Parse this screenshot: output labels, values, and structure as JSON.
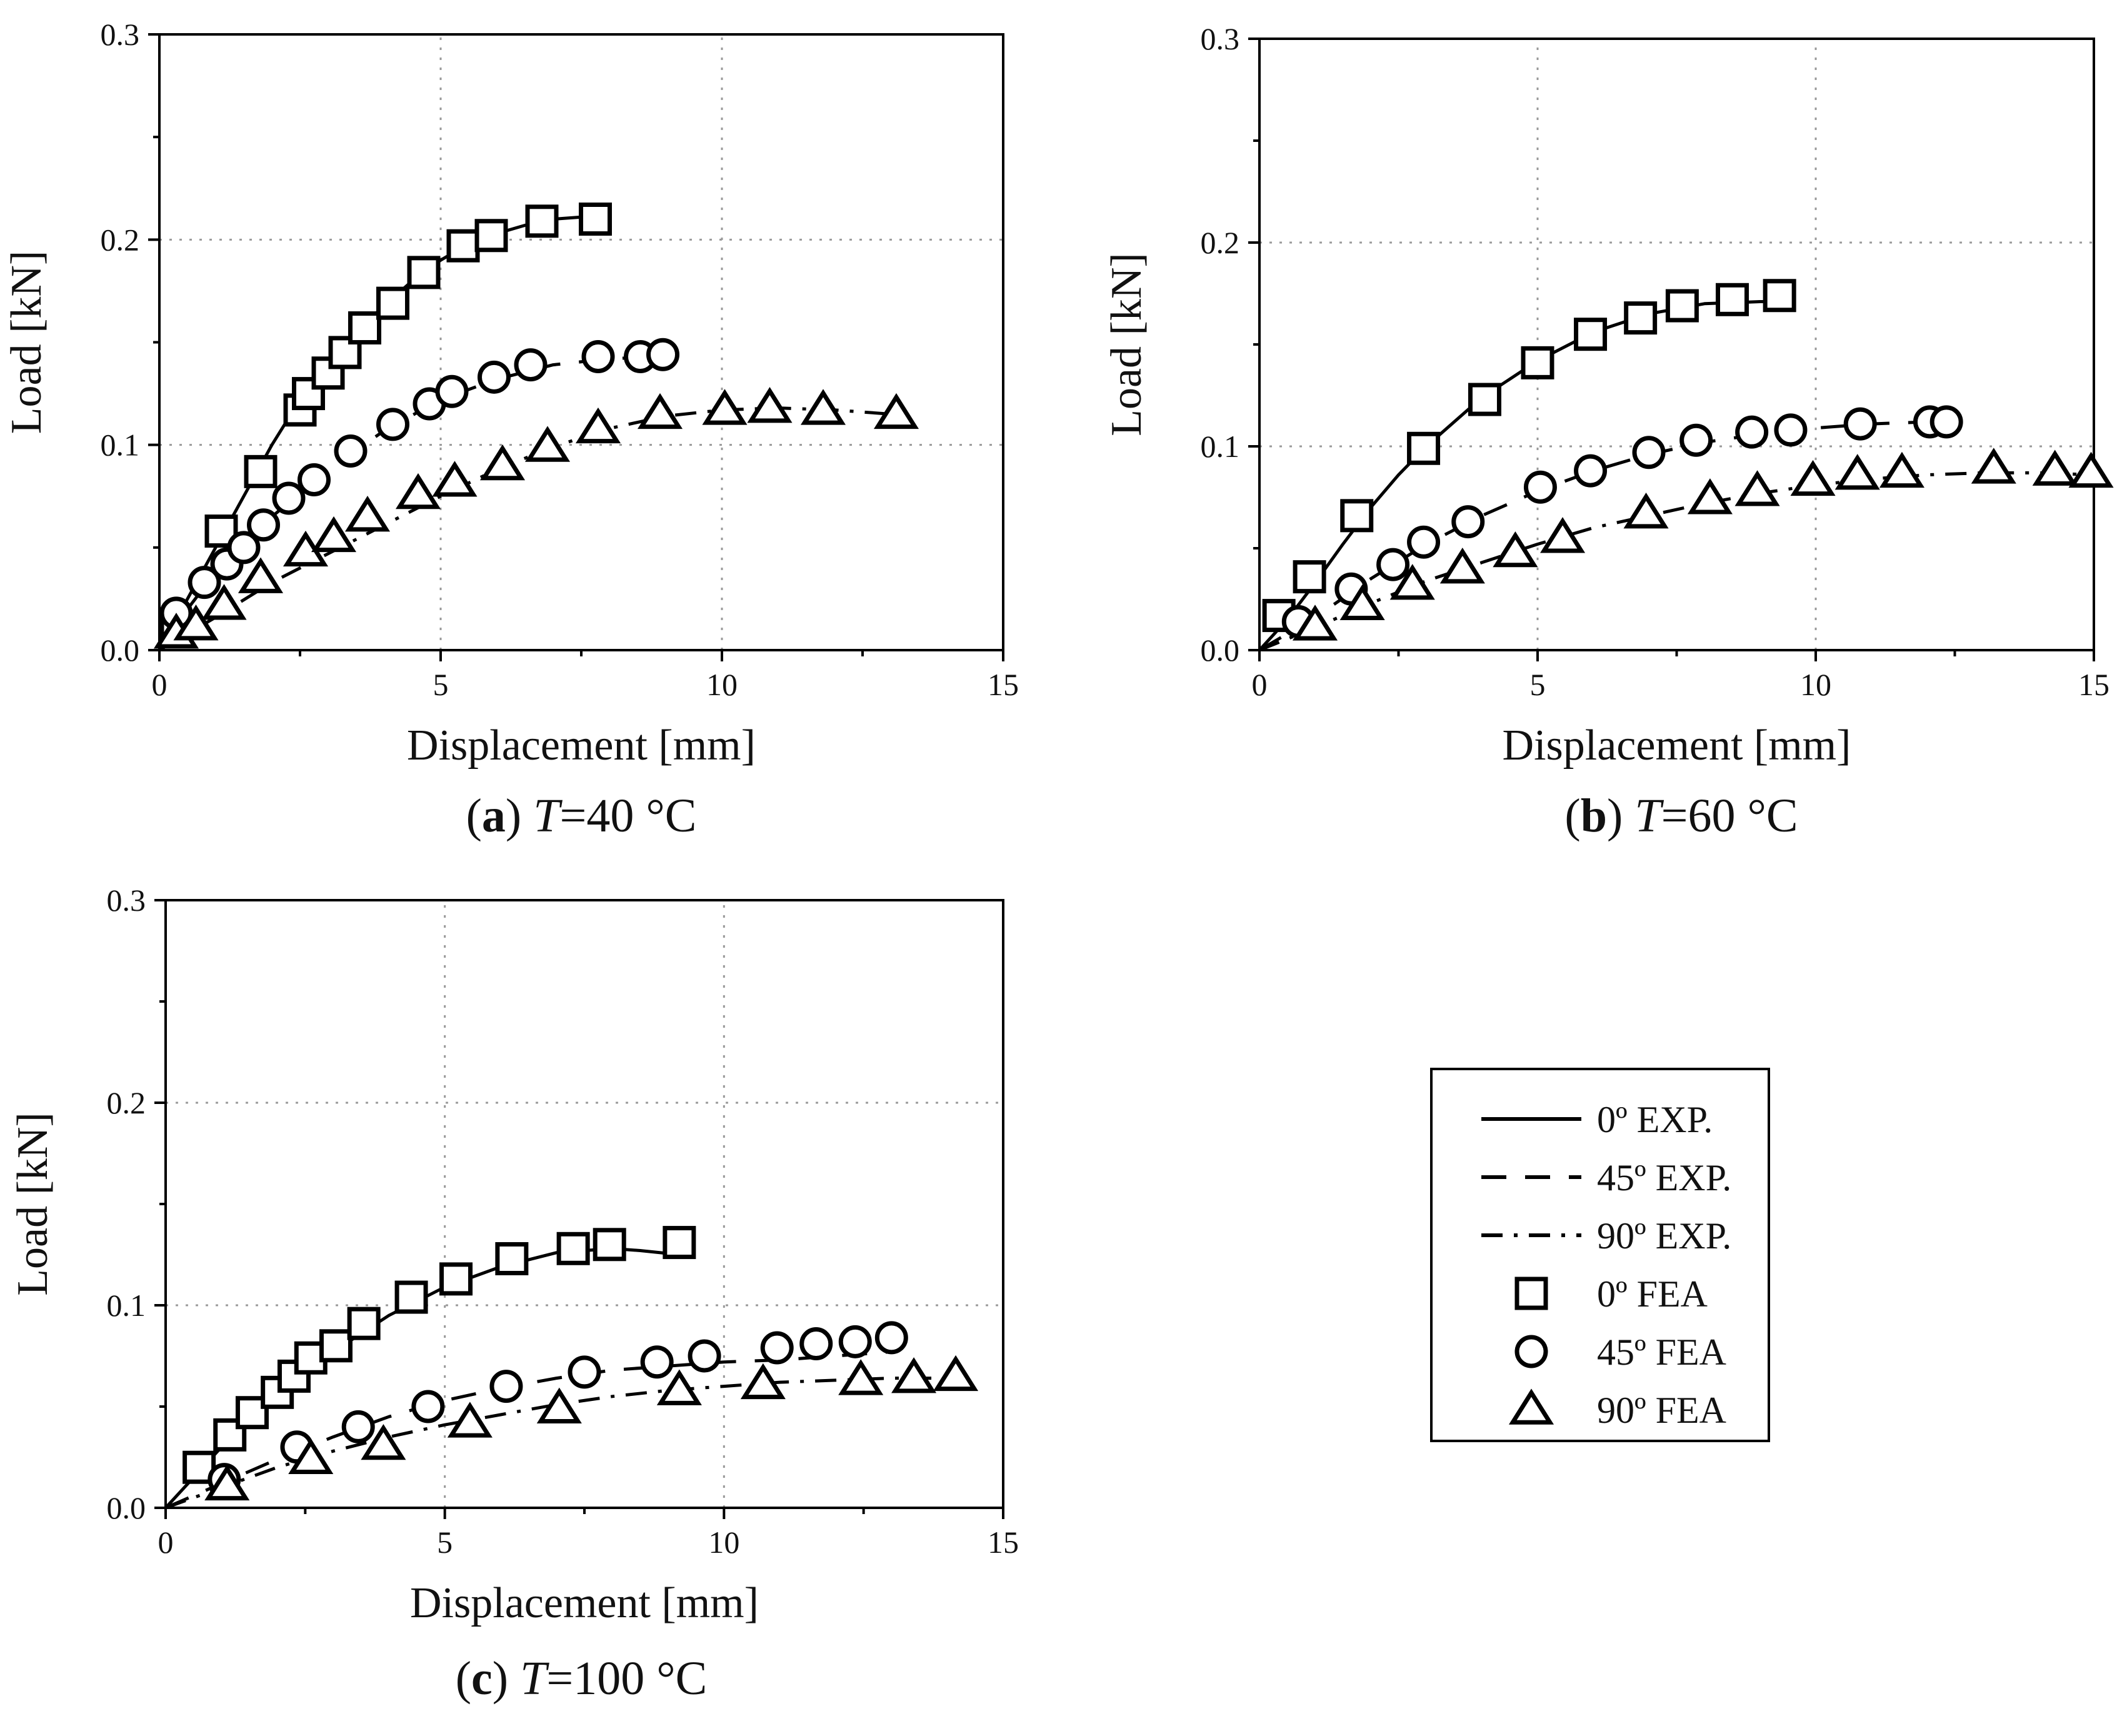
{
  "chart_data": [
    {
      "type": "line",
      "caption_letter": "a",
      "caption_rest": "=40 °C",
      "caption_var": "T",
      "xlabel": "Displacement [mm]",
      "ylabel": "Load [kN]",
      "xlim": [
        0,
        15
      ],
      "ylim": [
        0,
        0.3
      ],
      "xticks": [
        0,
        5,
        10,
        15
      ],
      "xtick_labels": [
        "0",
        "5",
        "10",
        "15"
      ],
      "yticks": [
        0,
        0.1,
        0.2,
        0.3
      ],
      "ytick_labels": [
        "0.0",
        "0.1",
        "0.2",
        "0.3"
      ],
      "grid": true,
      "series": [
        {
          "name": "0º EXP.",
          "style": "solid",
          "x": [
            0,
            0.5,
            1.0,
            1.5,
            2.0,
            2.5,
            3.0,
            3.5,
            4.0,
            4.5,
            5.0,
            5.5,
            6.0,
            6.5,
            7.0,
            7.5,
            7.8
          ],
          "y": [
            0,
            0.025,
            0.05,
            0.075,
            0.1,
            0.122,
            0.14,
            0.155,
            0.168,
            0.18,
            0.19,
            0.198,
            0.203,
            0.207,
            0.21,
            0.211,
            0.212
          ]
        },
        {
          "name": "45º EXP.",
          "style": "dashed",
          "x": [
            0,
            0.5,
            1.0,
            1.5,
            2.0,
            3.0,
            4.0,
            5.0,
            6.0,
            7.0,
            8.0,
            9.0
          ],
          "y": [
            0,
            0.02,
            0.038,
            0.052,
            0.065,
            0.088,
            0.107,
            0.122,
            0.132,
            0.139,
            0.142,
            0.143
          ]
        },
        {
          "name": "90º EXP.",
          "style": "dashdot",
          "x": [
            0,
            1,
            2,
            3,
            4,
            5,
            6,
            7,
            8,
            9,
            10,
            11,
            12,
            13
          ],
          "y": [
            0,
            0.016,
            0.033,
            0.047,
            0.061,
            0.075,
            0.088,
            0.099,
            0.108,
            0.114,
            0.117,
            0.118,
            0.117,
            0.115
          ]
        },
        {
          "name": "0º FEA",
          "marker": "square",
          "x": [
            0.3,
            1.1,
            1.8,
            2.5,
            2.65,
            3.0,
            3.3,
            3.65,
            4.15,
            4.7,
            5.4,
            5.9,
            6.8,
            7.75
          ],
          "y": [
            0.01,
            0.058,
            0.087,
            0.117,
            0.125,
            0.135,
            0.145,
            0.157,
            0.169,
            0.184,
            0.197,
            0.202,
            0.209,
            0.21
          ]
        },
        {
          "name": "45º FEA",
          "marker": "circle",
          "x": [
            0.3,
            0.8,
            1.2,
            1.5,
            1.85,
            2.3,
            2.75,
            3.4,
            4.15,
            4.8,
            5.2,
            5.95,
            6.6,
            7.8,
            8.55,
            8.95
          ],
          "y": [
            0.018,
            0.033,
            0.042,
            0.05,
            0.061,
            0.074,
            0.083,
            0.097,
            0.11,
            0.12,
            0.126,
            0.133,
            0.139,
            0.143,
            0.143,
            0.144
          ]
        },
        {
          "name": "90º FEA",
          "marker": "triangle",
          "x": [
            0.3,
            0.65,
            1.15,
            1.8,
            2.6,
            3.1,
            3.7,
            4.6,
            5.25,
            6.1,
            6.9,
            7.8,
            8.9,
            10.05,
            10.85,
            11.8,
            13.1
          ],
          "y": [
            0.008,
            0.012,
            0.022,
            0.035,
            0.048,
            0.055,
            0.065,
            0.076,
            0.082,
            0.09,
            0.099,
            0.108,
            0.115,
            0.117,
            0.118,
            0.117,
            0.115
          ]
        }
      ]
    },
    {
      "type": "line",
      "caption_letter": "b",
      "caption_rest": "=60 °C",
      "caption_var": "T",
      "xlabel": "Displacement [mm]",
      "ylabel": "Load [kN]",
      "xlim": [
        0,
        15
      ],
      "ylim": [
        0,
        0.3
      ],
      "xticks": [
        0,
        5,
        10,
        15
      ],
      "xtick_labels": [
        "0",
        "5",
        "10",
        "15"
      ],
      "yticks": [
        0,
        0.1,
        0.2,
        0.3
      ],
      "ytick_labels": [
        "0.0",
        "0.1",
        "0.2",
        "0.3"
      ],
      "grid": true,
      "series": [
        {
          "name": "0º EXP.",
          "style": "solid",
          "x": [
            0,
            0.5,
            1.0,
            1.5,
            2.0,
            2.5,
            3.0,
            4.0,
            5.0,
            6.0,
            7.0,
            8.0,
            9.0,
            9.3
          ],
          "y": [
            0,
            0.015,
            0.033,
            0.052,
            0.07,
            0.086,
            0.1,
            0.124,
            0.142,
            0.156,
            0.165,
            0.17,
            0.171,
            0.171
          ]
        },
        {
          "name": "45º EXP.",
          "style": "dashed",
          "x": [
            0,
            1,
            2,
            3,
            4,
            5,
            6,
            7,
            8,
            9,
            10,
            11,
            12
          ],
          "y": [
            0,
            0.016,
            0.035,
            0.052,
            0.066,
            0.078,
            0.088,
            0.096,
            0.102,
            0.106,
            0.109,
            0.111,
            0.112
          ]
        },
        {
          "name": "90º EXP.",
          "style": "dashdot",
          "x": [
            0,
            1,
            2,
            3,
            4,
            5,
            6,
            7,
            8,
            9,
            10,
            11,
            12,
            13,
            14,
            15
          ],
          "y": [
            0,
            0.011,
            0.023,
            0.034,
            0.043,
            0.052,
            0.06,
            0.066,
            0.072,
            0.077,
            0.081,
            0.084,
            0.086,
            0.087,
            0.087,
            0.086
          ]
        },
        {
          "name": "0º FEA",
          "marker": "square",
          "x": [
            0.35,
            0.9,
            1.75,
            2.95,
            4.05,
            5.0,
            5.95,
            6.85,
            7.6,
            8.5,
            9.35
          ],
          "y": [
            0.017,
            0.036,
            0.066,
            0.099,
            0.123,
            0.141,
            0.155,
            0.163,
            0.169,
            0.172,
            0.174
          ]
        },
        {
          "name": "45º FEA",
          "marker": "circle",
          "x": [
            0.7,
            1.65,
            2.4,
            2.95,
            3.75,
            5.05,
            5.95,
            7.0,
            7.85,
            8.85,
            9.55,
            10.8,
            12.05,
            12.35
          ],
          "y": [
            0.014,
            0.03,
            0.042,
            0.053,
            0.063,
            0.08,
            0.088,
            0.097,
            0.103,
            0.107,
            0.108,
            0.111,
            0.112,
            0.112
          ]
        },
        {
          "name": "90º FEA",
          "marker": "triangle",
          "x": [
            1.0,
            1.85,
            2.75,
            3.65,
            4.6,
            5.45,
            6.95,
            8.1,
            8.95,
            9.95,
            10.75,
            11.55,
            13.2,
            14.3,
            14.95
          ],
          "y": [
            0.012,
            0.022,
            0.032,
            0.04,
            0.048,
            0.055,
            0.067,
            0.074,
            0.078,
            0.083,
            0.086,
            0.087,
            0.089,
            0.088,
            0.087
          ]
        }
      ]
    },
    {
      "type": "line",
      "caption_letter": "c",
      "caption_rest": "=100 °C",
      "caption_var": "T",
      "xlabel": "Displacement [mm]",
      "ylabel": "Load [kN]",
      "xlim": [
        0,
        15
      ],
      "ylim": [
        0,
        0.3
      ],
      "xticks": [
        0,
        5,
        10,
        15
      ],
      "xtick_labels": [
        "0",
        "5",
        "10",
        "15"
      ],
      "yticks": [
        0,
        0.1,
        0.2,
        0.3
      ],
      "ytick_labels": [
        "0.0",
        "0.1",
        "0.2",
        "0.3"
      ],
      "grid": true,
      "series": [
        {
          "name": "0º EXP.",
          "style": "solid",
          "x": [
            0,
            0.5,
            1.0,
            1.5,
            2.0,
            2.5,
            3.0,
            4.0,
            5.0,
            6.0,
            7.0,
            8.0,
            8.5,
            9.2
          ],
          "y": [
            0,
            0.015,
            0.03,
            0.044,
            0.056,
            0.067,
            0.077,
            0.095,
            0.109,
            0.119,
            0.126,
            0.128,
            0.127,
            0.125
          ]
        },
        {
          "name": "45º EXP.",
          "style": "dashed",
          "x": [
            0,
            1,
            2,
            3,
            4,
            5,
            6,
            7,
            8,
            9,
            10,
            11,
            12,
            13
          ],
          "y": [
            0,
            0.012,
            0.024,
            0.035,
            0.045,
            0.053,
            0.059,
            0.064,
            0.068,
            0.07,
            0.072,
            0.073,
            0.075,
            0.077
          ]
        },
        {
          "name": "90º EXP.",
          "style": "dashdot",
          "x": [
            0,
            1,
            2,
            3,
            4,
            5,
            6,
            7,
            8,
            9,
            10,
            11,
            12,
            13,
            14
          ],
          "y": [
            0,
            0.01,
            0.02,
            0.028,
            0.035,
            0.041,
            0.046,
            0.051,
            0.055,
            0.058,
            0.06,
            0.062,
            0.063,
            0.064,
            0.064
          ]
        },
        {
          "name": "0º FEA",
          "marker": "square",
          "x": [
            0.6,
            1.15,
            1.55,
            2.0,
            2.3,
            2.6,
            3.05,
            3.55,
            4.4,
            5.2,
            6.2,
            7.3,
            7.95,
            9.2
          ],
          "y": [
            0.02,
            0.036,
            0.047,
            0.057,
            0.065,
            0.074,
            0.08,
            0.091,
            0.104,
            0.113,
            0.123,
            0.128,
            0.13,
            0.131
          ]
        },
        {
          "name": "45º FEA",
          "marker": "circle",
          "x": [
            1.05,
            2.35,
            3.45,
            4.7,
            6.1,
            7.5,
            8.8,
            9.65,
            10.95,
            11.65,
            12.35,
            13.0
          ],
          "y": [
            0.014,
            0.03,
            0.04,
            0.05,
            0.06,
            0.067,
            0.072,
            0.075,
            0.079,
            0.081,
            0.082,
            0.084
          ]
        },
        {
          "name": "90º FEA",
          "marker": "triangle",
          "x": [
            1.1,
            2.6,
            3.9,
            5.45,
            7.05,
            9.2,
            10.7,
            12.45,
            13.4,
            14.15
          ],
          "y": [
            0.011,
            0.024,
            0.031,
            0.042,
            0.049,
            0.058,
            0.061,
            0.063,
            0.064,
            0.065
          ]
        }
      ]
    }
  ],
  "legend": {
    "entries": [
      {
        "label": "0º EXP.",
        "kind": "line",
        "style": "solid"
      },
      {
        "label": "45º EXP.",
        "kind": "line",
        "style": "dashed"
      },
      {
        "label": "90º EXP.",
        "kind": "line",
        "style": "dashdot"
      },
      {
        "label": "0º FEA",
        "kind": "marker",
        "marker": "square"
      },
      {
        "label": "45º FEA",
        "kind": "marker",
        "marker": "circle"
      },
      {
        "label": "90º FEA",
        "kind": "marker",
        "marker": "triangle"
      }
    ]
  }
}
